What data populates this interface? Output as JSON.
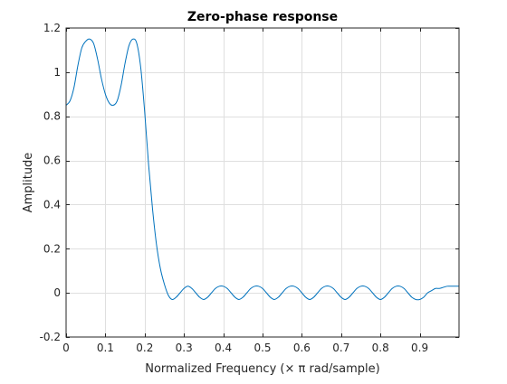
{
  "chart_data": {
    "type": "line",
    "title": "Zero-phase response",
    "xlabel": "Normalized Frequency (× π rad/sample)",
    "ylabel": "Amplitude",
    "xlim": [
      0,
      1
    ],
    "ylim": [
      -0.2,
      1.2
    ],
    "xticks": [
      0,
      0.1,
      0.2,
      0.3,
      0.4,
      0.5,
      0.6,
      0.7,
      0.8,
      0.9
    ],
    "xtick_labels": [
      "0",
      "0.1",
      "0.2",
      "0.3",
      "0.4",
      "0.5",
      "0.6",
      "0.7",
      "0.8",
      "0.9"
    ],
    "yticks": [
      -0.2,
      0,
      0.2,
      0.4,
      0.6,
      0.8,
      1,
      1.2
    ],
    "ytick_labels": [
      "-0.2",
      "0",
      "0.2",
      "0.4",
      "0.6",
      "0.8",
      "1",
      "1.2"
    ],
    "grid": true,
    "line_color": "#0072bd",
    "series": [
      {
        "x": [
          0.0,
          0.01,
          0.02,
          0.03,
          0.04,
          0.05,
          0.06,
          0.07,
          0.08,
          0.09,
          0.1,
          0.11,
          0.12,
          0.13,
          0.14,
          0.15,
          0.16,
          0.17,
          0.18,
          0.19,
          0.2,
          0.21,
          0.22,
          0.23,
          0.24,
          0.25,
          0.26,
          0.27,
          0.28,
          0.29,
          0.3,
          0.31,
          0.32,
          0.33,
          0.34,
          0.35,
          0.36,
          0.37,
          0.38,
          0.39,
          0.4,
          0.41,
          0.42,
          0.43,
          0.44,
          0.45,
          0.46,
          0.47,
          0.48,
          0.49,
          0.5,
          0.51,
          0.52,
          0.53,
          0.54,
          0.55,
          0.56,
          0.57,
          0.58,
          0.59,
          0.6,
          0.61,
          0.62,
          0.63,
          0.64,
          0.65,
          0.66,
          0.67,
          0.68,
          0.69,
          0.7,
          0.71,
          0.72,
          0.73,
          0.74,
          0.75,
          0.76,
          0.77,
          0.78,
          0.79,
          0.8,
          0.81,
          0.82,
          0.83,
          0.84,
          0.85,
          0.86,
          0.87,
          0.88,
          0.89,
          0.9,
          0.91,
          0.92,
          0.93,
          0.94,
          0.95,
          0.96,
          0.97,
          0.98,
          0.99,
          1.0
        ],
        "y": [
          0.85,
          0.87,
          0.93,
          1.03,
          1.11,
          1.14,
          1.15,
          1.13,
          1.06,
          0.97,
          0.9,
          0.86,
          0.85,
          0.87,
          0.94,
          1.04,
          1.12,
          1.15,
          1.13,
          1.02,
          0.82,
          0.58,
          0.38,
          0.22,
          0.11,
          0.04,
          -0.01,
          -0.03,
          -0.02,
          0.0,
          0.02,
          0.03,
          0.02,
          0.0,
          -0.02,
          -0.03,
          -0.02,
          0.0,
          0.02,
          0.03,
          0.03,
          0.02,
          0.0,
          -0.02,
          -0.03,
          -0.02,
          0.0,
          0.02,
          0.03,
          0.03,
          0.02,
          0.0,
          -0.02,
          -0.03,
          -0.02,
          0.0,
          0.02,
          0.03,
          0.03,
          0.02,
          0.0,
          -0.02,
          -0.03,
          -0.02,
          0.0,
          0.02,
          0.03,
          0.03,
          0.02,
          0.0,
          -0.02,
          -0.03,
          -0.02,
          0.0,
          0.02,
          0.03,
          0.03,
          0.02,
          0.0,
          -0.02,
          -0.03,
          -0.02,
          0.0,
          0.02,
          0.03,
          0.03,
          0.02,
          0.0,
          -0.02,
          -0.03,
          -0.03,
          -0.02,
          0.0,
          0.01,
          0.02,
          0.02,
          0.025,
          0.03,
          0.03,
          0.03,
          0.03
        ]
      }
    ]
  }
}
